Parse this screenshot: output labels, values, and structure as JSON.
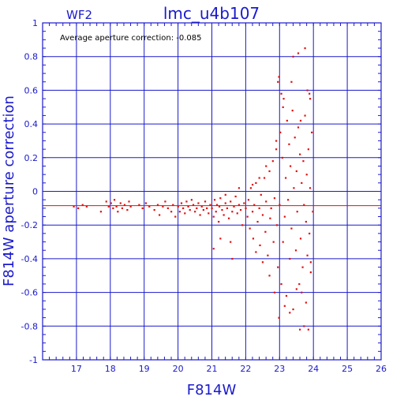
{
  "header": {
    "chip": "WF2",
    "title": "lmc_u4b107"
  },
  "annotation": "Average aperture correction: -0.085",
  "chart_data": {
    "type": "scatter",
    "title": "lmc_u4b107",
    "xlabel": "F814W",
    "ylabel": "F814W aperture correction",
    "xlim": [
      16,
      26
    ],
    "ylim": [
      -1,
      1
    ],
    "xticks": [
      "17",
      "18",
      "19",
      "20",
      "21",
      "22",
      "23",
      "24",
      "25",
      "26"
    ],
    "yticks": [
      "-1",
      "-0.8",
      "-0.6",
      "-0.4",
      "-0.2",
      "0",
      "0.2",
      "0.4",
      "0.6",
      "0.8",
      "1"
    ],
    "grid": true,
    "reference_line": -0.085,
    "colors": {
      "axes": "#1a1acc",
      "points": "#e01010",
      "reference": "#e01010"
    },
    "series": [
      {
        "values": [
          [
            16.92,
            -0.09
          ],
          [
            17.05,
            -0.1
          ],
          [
            17.18,
            -0.08
          ],
          [
            17.3,
            -0.09
          ],
          [
            17.72,
            -0.12
          ],
          [
            17.88,
            -0.06
          ],
          [
            17.95,
            -0.09
          ],
          [
            18.02,
            -0.07
          ],
          [
            18.08,
            -0.1
          ],
          [
            18.12,
            -0.05
          ],
          [
            18.18,
            -0.09
          ],
          [
            18.22,
            -0.12
          ],
          [
            18.3,
            -0.07
          ],
          [
            18.35,
            -0.1
          ],
          [
            18.42,
            -0.08
          ],
          [
            18.5,
            -0.11
          ],
          [
            18.55,
            -0.06
          ],
          [
            18.6,
            -0.09
          ],
          [
            18.85,
            -0.08
          ],
          [
            18.95,
            -0.1
          ],
          [
            19.05,
            -0.07
          ],
          [
            19.15,
            -0.09
          ],
          [
            19.3,
            -0.11
          ],
          [
            19.4,
            -0.08
          ],
          [
            19.45,
            -0.14
          ],
          [
            19.55,
            -0.09
          ],
          [
            19.62,
            -0.06
          ],
          [
            19.7,
            -0.1
          ],
          [
            19.8,
            -0.12
          ],
          [
            19.85,
            -0.08
          ],
          [
            19.92,
            -0.15
          ],
          [
            20.0,
            -0.09
          ],
          [
            20.05,
            -0.12
          ],
          [
            20.1,
            -0.07
          ],
          [
            20.15,
            -0.1
          ],
          [
            20.2,
            -0.13
          ],
          [
            20.25,
            -0.06
          ],
          [
            20.3,
            -0.09
          ],
          [
            20.35,
            -0.11
          ],
          [
            20.4,
            -0.05
          ],
          [
            20.45,
            -0.08
          ],
          [
            20.5,
            -0.12
          ],
          [
            20.55,
            -0.1
          ],
          [
            20.6,
            -0.07
          ],
          [
            20.65,
            -0.14
          ],
          [
            20.7,
            -0.09
          ],
          [
            20.75,
            -0.11
          ],
          [
            20.8,
            -0.06
          ],
          [
            20.85,
            -0.1
          ],
          [
            20.9,
            -0.13
          ],
          [
            20.95,
            -0.08
          ],
          [
            21.0,
            -0.1
          ],
          [
            21.05,
            -0.15
          ],
          [
            21.08,
            -0.05
          ],
          [
            21.12,
            -0.12
          ],
          [
            21.15,
            -0.08
          ],
          [
            21.2,
            -0.18
          ],
          [
            21.22,
            -0.09
          ],
          [
            21.25,
            -0.04
          ],
          [
            21.3,
            -0.11
          ],
          [
            21.35,
            -0.14
          ],
          [
            21.4,
            -0.07
          ],
          [
            21.45,
            -0.1
          ],
          [
            21.5,
            -0.16
          ],
          [
            21.55,
            -0.06
          ],
          [
            21.6,
            -0.12
          ],
          [
            21.65,
            -0.09
          ],
          [
            21.7,
            -0.03
          ],
          [
            21.75,
            -0.13
          ],
          [
            21.8,
            -0.08
          ],
          [
            21.85,
            -0.11
          ],
          [
            21.9,
            -0.2
          ],
          [
            21.95,
            -0.07
          ],
          [
            21.05,
            -0.34
          ],
          [
            21.25,
            -0.28
          ],
          [
            21.55,
            -0.3
          ],
          [
            21.6,
            -0.4
          ],
          [
            21.4,
            -0.02
          ],
          [
            21.8,
            0.02
          ],
          [
            22.0,
            -0.1
          ],
          [
            22.05,
            -0.15
          ],
          [
            22.08,
            -0.05
          ],
          [
            22.12,
            -0.22
          ],
          [
            22.15,
            0.02
          ],
          [
            22.2,
            -0.12
          ],
          [
            22.22,
            -0.28
          ],
          [
            22.25,
            -0.08
          ],
          [
            22.3,
            0.05
          ],
          [
            22.35,
            -0.18
          ],
          [
            22.4,
            -0.1
          ],
          [
            22.42,
            -0.32
          ],
          [
            22.45,
            -0.02
          ],
          [
            22.5,
            -0.14
          ],
          [
            22.55,
            0.08
          ],
          [
            22.58,
            -0.24
          ],
          [
            22.6,
            -0.06
          ],
          [
            22.65,
            -0.38
          ],
          [
            22.7,
            0.12
          ],
          [
            22.72,
            -0.16
          ],
          [
            22.75,
            -0.1
          ],
          [
            22.8,
            0.18
          ],
          [
            22.82,
            -0.3
          ],
          [
            22.85,
            -0.04
          ],
          [
            22.9,
            0.25
          ],
          [
            22.92,
            -0.2
          ],
          [
            22.95,
            -0.45
          ],
          [
            22.2,
            0.04
          ],
          [
            22.4,
            0.08
          ],
          [
            22.6,
            0.15
          ],
          [
            22.7,
            -0.5
          ],
          [
            22.85,
            -0.6
          ],
          [
            22.9,
            0.3
          ],
          [
            22.5,
            -0.42
          ],
          [
            22.3,
            -0.36
          ],
          [
            23.0,
            -0.08
          ],
          [
            23.02,
            0.35
          ],
          [
            23.05,
            -0.55
          ],
          [
            23.08,
            0.2
          ],
          [
            23.1,
            -0.3
          ],
          [
            23.12,
            0.55
          ],
          [
            23.15,
            -0.15
          ],
          [
            23.18,
            0.08
          ],
          [
            23.2,
            -0.62
          ],
          [
            23.22,
            0.42
          ],
          [
            23.25,
            -0.05
          ],
          [
            23.28,
            0.28
          ],
          [
            23.3,
            -0.4
          ],
          [
            23.32,
            0.15
          ],
          [
            23.35,
            -0.22
          ],
          [
            23.38,
            0.48
          ],
          [
            23.4,
            -0.7
          ],
          [
            23.42,
            0.02
          ],
          [
            23.45,
            0.32
          ],
          [
            23.48,
            -0.35
          ],
          [
            23.5,
            0.12
          ],
          [
            23.52,
            -0.12
          ],
          [
            23.55,
            0.38
          ],
          [
            23.58,
            -0.55
          ],
          [
            23.6,
            0.22
          ],
          [
            23.62,
            -0.28
          ],
          [
            23.65,
            0.05
          ],
          [
            23.68,
            -0.45
          ],
          [
            23.7,
            0.18
          ],
          [
            23.72,
            -0.08
          ],
          [
            23.75,
            0.45
          ],
          [
            23.78,
            -0.18
          ],
          [
            23.8,
            0.1
          ],
          [
            23.82,
            -0.38
          ],
          [
            23.85,
            0.25
          ],
          [
            23.88,
            -0.25
          ],
          [
            23.9,
            0.02
          ],
          [
            23.92,
            -0.42
          ],
          [
            23.95,
            0.35
          ],
          [
            23.98,
            -0.12
          ],
          [
            22.95,
            0.65
          ],
          [
            22.98,
            0.68
          ],
          [
            23.05,
            0.58
          ],
          [
            23.4,
            0.8
          ],
          [
            23.55,
            0.82
          ],
          [
            23.75,
            0.85
          ],
          [
            23.82,
            0.6
          ],
          [
            23.88,
            0.58
          ],
          [
            23.9,
            0.55
          ],
          [
            23.35,
            0.65
          ],
          [
            23.62,
            0.42
          ],
          [
            23.1,
            0.5
          ],
          [
            22.98,
            -0.75
          ],
          [
            23.15,
            -0.68
          ],
          [
            23.6,
            -0.82
          ],
          [
            23.72,
            -0.8
          ],
          [
            23.85,
            -0.82
          ],
          [
            23.65,
            -0.6
          ],
          [
            23.78,
            -0.66
          ],
          [
            23.3,
            -0.72
          ],
          [
            23.5,
            -0.58
          ],
          [
            23.92,
            -0.48
          ]
        ]
      }
    ]
  }
}
